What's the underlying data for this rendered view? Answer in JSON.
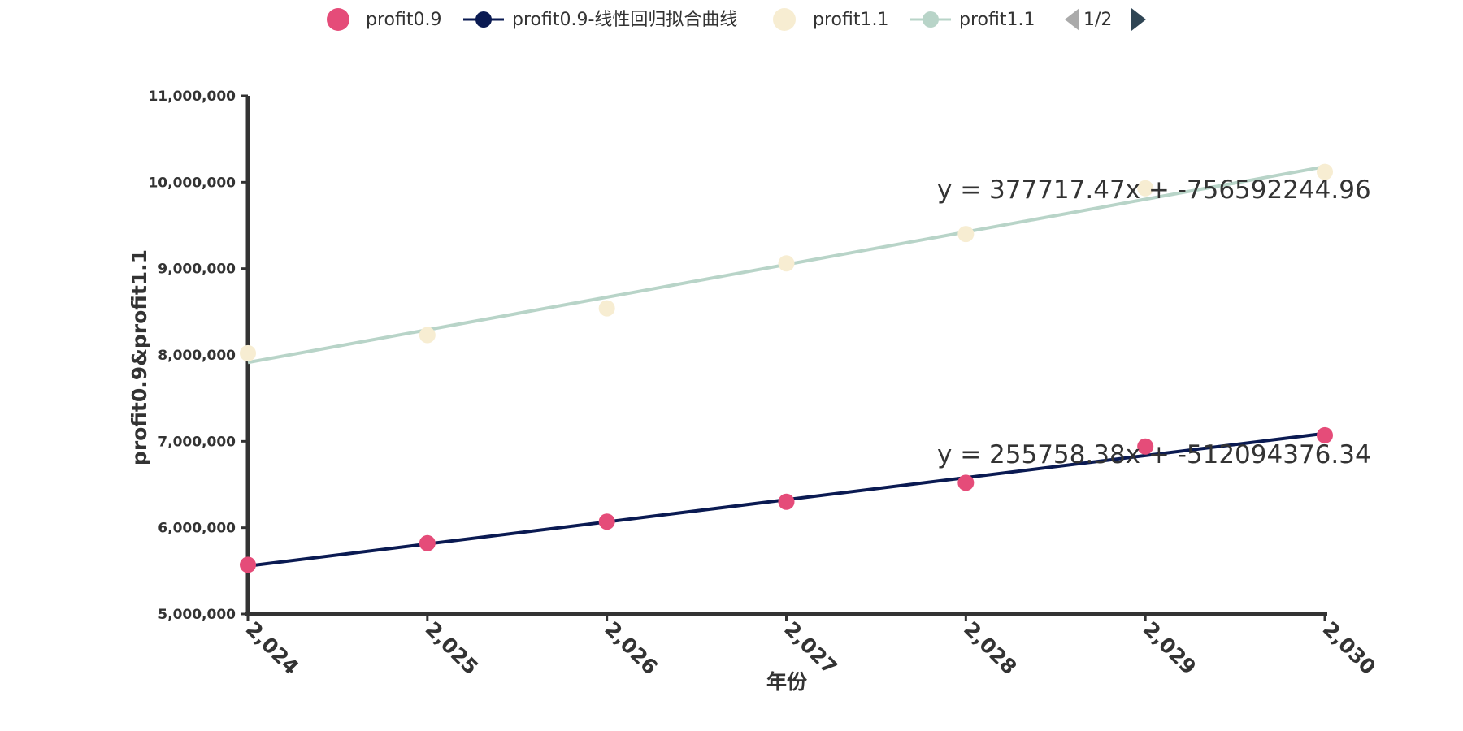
{
  "colors": {
    "profit09_points": "#e54c79",
    "profit09_fit": "#0a1a52",
    "profit11_points": "#f7edd2",
    "profit11_fit": "#b8d4c8",
    "axis": "#333333",
    "pager_disabled": "#aaaaaa",
    "pager_active": "#2f4554"
  },
  "legend": {
    "items": [
      {
        "label": "profit0.9",
        "kind": "point",
        "color": "#e54c79"
      },
      {
        "label": "profit0.9-线性回归拟合曲线",
        "kind": "line",
        "color": "#0a1a52"
      },
      {
        "label": "profit1.1",
        "kind": "point",
        "color": "#f7edd2"
      },
      {
        "label": "profit1.1",
        "kind": "line",
        "color": "#b8d4c8"
      }
    ],
    "page_text": "1/2",
    "prev_icon": "triangle-left-icon",
    "next_icon": "triangle-right-icon"
  },
  "chart_data": {
    "type": "scatter",
    "xlabel": "年份",
    "ylabel": "profit0.9&profit1.1",
    "xlim": [
      2024,
      2030
    ],
    "ylim": [
      5000000,
      11000000
    ],
    "x_ticks": [
      "2,024",
      "2,025",
      "2,026",
      "2,027",
      "2,028",
      "2,029",
      "2,030"
    ],
    "y_ticks": [
      "5,000,000",
      "6,000,000",
      "7,000,000",
      "8,000,000",
      "9,000,000",
      "10,000,000",
      "11,000,000"
    ],
    "series": [
      {
        "name": "profit0.9",
        "type": "scatter",
        "x": [
          2024,
          2025,
          2026,
          2027,
          2028,
          2029,
          2030
        ],
        "y": [
          5570000,
          5820000,
          6070000,
          6300000,
          6520000,
          6940000,
          7070000
        ]
      },
      {
        "name": "profit0.9-线性回归拟合曲线",
        "type": "line",
        "x": [
          2024,
          2030
        ],
        "y": [
          5556000,
          7091000
        ],
        "equation": "y = 255758.38x + -512094376.34"
      },
      {
        "name": "profit1.1",
        "type": "scatter",
        "x": [
          2024,
          2025,
          2026,
          2027,
          2028,
          2029,
          2030
        ],
        "y": [
          8020000,
          8230000,
          8540000,
          9060000,
          9400000,
          9930000,
          10120000
        ]
      },
      {
        "name": "profit1.1",
        "type": "line",
        "x": [
          2024,
          2030
        ],
        "y": [
          7913000,
          10180000
        ],
        "equation": "y = 377717.47x + -756592244.96"
      }
    ]
  }
}
